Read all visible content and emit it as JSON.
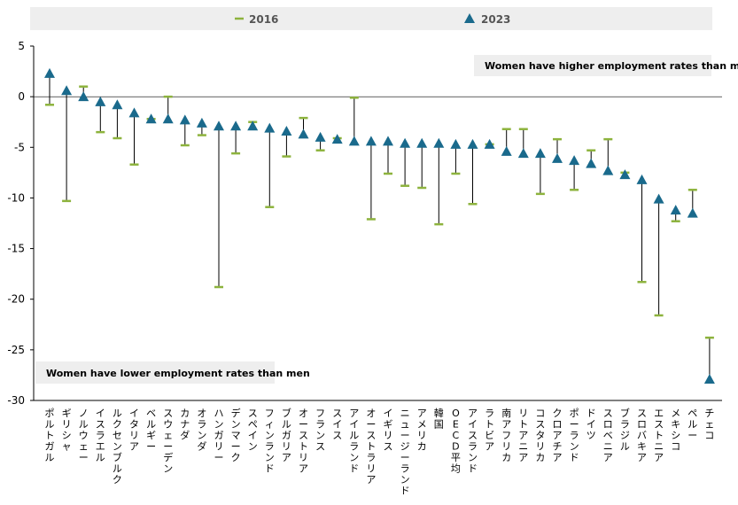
{
  "chart_data": {
    "type": "scatter",
    "legend": [
      {
        "name": "2016",
        "marker": "dash",
        "color": "#8db33d"
      },
      {
        "name": "2023",
        "marker": "triangle",
        "color": "#1a6a8c"
      }
    ],
    "annotations": {
      "top": "Women have higher employment rates than men",
      "bottom": "Women have lower employment rates than men"
    },
    "ylim": [
      -30,
      5
    ],
    "yticks": [
      5,
      0,
      -5,
      -10,
      -15,
      -20,
      -25,
      -30
    ],
    "categories": [
      "ポルトガル",
      "ギリシャ",
      "ノルウェー",
      "イスラエル",
      "ルクセンブルク",
      "イタリア",
      "ベルギー",
      "スウェーデン",
      "カナダ",
      "オランダ",
      "ハンガリー",
      "デンマーク",
      "スペイン",
      "フィンランド",
      "ブルガリア",
      "オーストリア",
      "フランス",
      "スイス",
      "アイルランド",
      "オーストラリア",
      "イギリス",
      "ニュージーランド",
      "アメリカ",
      "韓国",
      "OECD平均",
      "アイスランド",
      "ラトビア",
      "南アフリカ",
      "リトアニア",
      "コスタリカ",
      "クロアチア",
      "ポーランド",
      "ドイツ",
      "スロベニア",
      "ブラジル",
      "スロバキア",
      "エストニア",
      "メキシコ",
      "ペルー",
      "チェコ"
    ],
    "series": [
      {
        "name": "2016",
        "values": [
          -0.8,
          -10.3,
          1.0,
          -3.5,
          -4.1,
          -6.7,
          -2.2,
          0.0,
          -4.8,
          -3.8,
          -18.8,
          -5.6,
          -2.5,
          -10.9,
          -5.9,
          -2.1,
          -5.3,
          -4.1,
          -0.1,
          -12.1,
          -7.6,
          -8.8,
          -9.0,
          -12.6,
          -7.6,
          -10.6,
          -4.7,
          -3.2,
          -3.2,
          -9.6,
          -4.2,
          -9.2,
          -5.3,
          -4.2,
          -7.5,
          -18.3,
          -21.6,
          -12.3,
          -9.2,
          -23.8
        ]
      },
      {
        "name": "2023",
        "values": [
          2.3,
          0.6,
          0.0,
          -0.5,
          -0.8,
          -1.6,
          -2.2,
          -2.2,
          -2.3,
          -2.6,
          -2.9,
          -2.9,
          -2.9,
          -3.1,
          -3.4,
          -3.7,
          -4.0,
          -4.2,
          -4.4,
          -4.4,
          -4.4,
          -4.6,
          -4.6,
          -4.6,
          -4.7,
          -4.7,
          -4.7,
          -5.4,
          -5.6,
          -5.6,
          -6.1,
          -6.3,
          -6.6,
          -7.3,
          -7.7,
          -8.2,
          -10.1,
          -11.2,
          -11.5,
          -27.9
        ]
      }
    ]
  }
}
